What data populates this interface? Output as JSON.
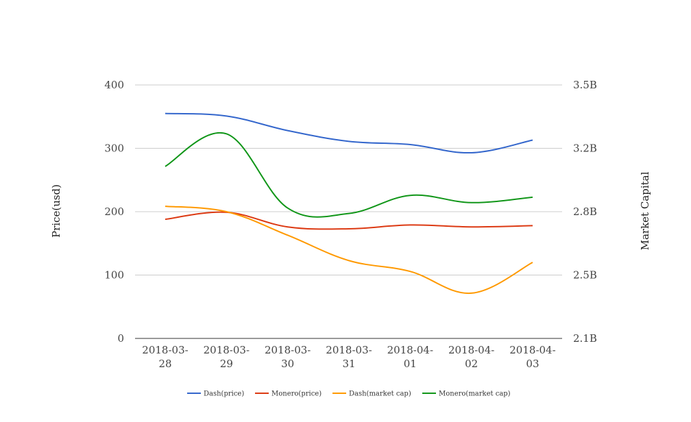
{
  "chart_data": {
    "type": "line",
    "categories": [
      "2018-03-28",
      "2018-03-29",
      "2018-03-30",
      "2018-03-31",
      "2018-04-01",
      "2018-04-02",
      "2018-04-03"
    ],
    "x_tick_labels": [
      [
        "2018-03-",
        "28"
      ],
      [
        "2018-03-",
        "29"
      ],
      [
        "2018-03-",
        "30"
      ],
      [
        "2018-03-",
        "31"
      ],
      [
        "2018-04-",
        "01"
      ],
      [
        "2018-04-",
        "02"
      ],
      [
        "2018-04-",
        "03"
      ]
    ],
    "y_left": {
      "label": "Price(usd)",
      "range": [
        0,
        400
      ],
      "ticks": [
        0,
        100,
        200,
        300,
        400
      ],
      "tick_labels": [
        "0",
        "100",
        "200",
        "300",
        "400"
      ]
    },
    "y_right": {
      "label": "Market Capital",
      "range": [
        2100000000,
        3500000000
      ],
      "ticks": [
        2100000000,
        2450000000,
        2800000000,
        3150000000,
        3500000000
      ],
      "tick_labels": [
        "2.1B",
        "2.5B",
        "2.8B",
        "3.2B",
        "3.5B"
      ]
    },
    "grid": true,
    "legend_position": "bottom",
    "series": [
      {
        "name": "Dash(price)",
        "axis": "left",
        "color": "#3366cc",
        "values": [
          355,
          351,
          328,
          311,
          306,
          293,
          313
        ]
      },
      {
        "name": "Monero(price)",
        "axis": "left",
        "color": "#dc3912",
        "values": [
          188,
          199,
          176,
          173,
          179,
          176,
          178
        ]
      },
      {
        "name": "Dash(market cap)",
        "axis": "right",
        "color": "#ff9900",
        "values": [
          2830000000,
          2800000000,
          2670000000,
          2530000000,
          2470000000,
          2350000000,
          2520000000
        ]
      },
      {
        "name": "Monero(market cap)",
        "axis": "right",
        "color": "#109618",
        "values": [
          3050000000,
          3230000000,
          2820000000,
          2790000000,
          2890000000,
          2850000000,
          2880000000
        ]
      }
    ]
  }
}
